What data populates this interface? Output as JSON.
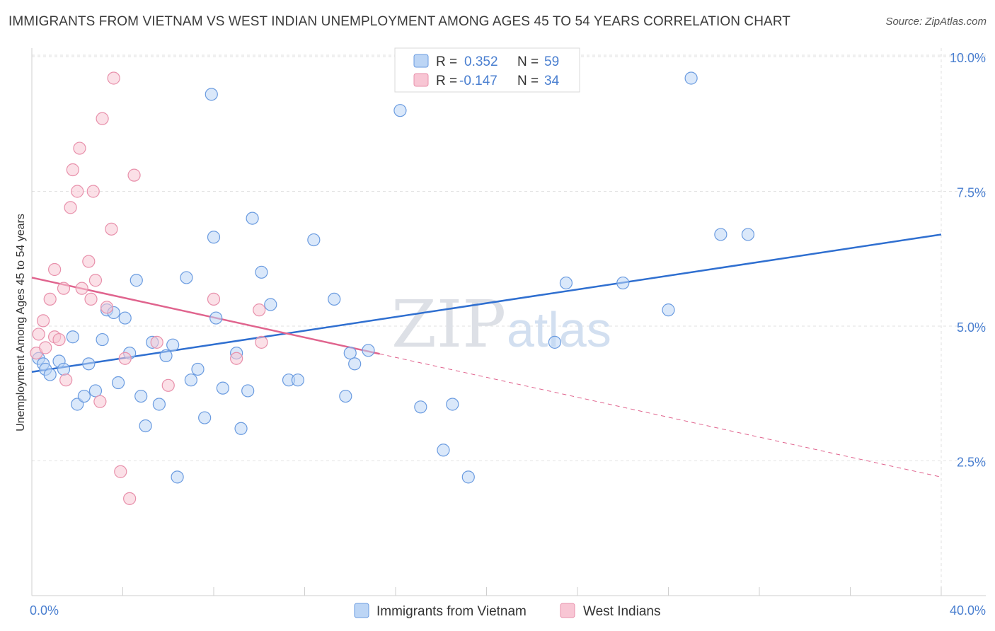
{
  "chart_data": {
    "type": "scatter",
    "title": "IMMIGRANTS FROM VIETNAM VS WEST INDIAN UNEMPLOYMENT AMONG AGES 45 TO 54 YEARS CORRELATION CHART",
    "source": "Source: ZipAtlas.com",
    "ylabel": "Unemployment Among Ages 45 to 54 years",
    "xlabel": "",
    "xlim": [
      0,
      40
    ],
    "ylim": [
      0,
      10.2
    ],
    "x_tick_labels": [
      "0.0%",
      "40.0%"
    ],
    "y_ticks": [
      {
        "value": 2.5,
        "label": "2.5%"
      },
      {
        "value": 5.0,
        "label": "5.0%"
      },
      {
        "value": 7.5,
        "label": "7.5%"
      },
      {
        "value": 10.0,
        "label": "10.0%"
      }
    ],
    "watermark": {
      "zip": "ZIP",
      "atlas": "atlas"
    },
    "legend": {
      "r_label": "R =",
      "n_label": "N =",
      "entries": [
        {
          "r": "0.352",
          "n": "59"
        },
        {
          "r": "-0.147",
          "n": "34"
        }
      ]
    },
    "series": [
      {
        "name": "Immigrants from Vietnam",
        "color": "#6a9be0",
        "fill": "#bcd5f5",
        "trend": {
          "x0": 0,
          "y0": 4.15,
          "x1": 40,
          "y1": 6.7,
          "dashed_from": null
        },
        "points": [
          [
            0.3,
            4.4
          ],
          [
            0.5,
            4.3
          ],
          [
            0.6,
            4.2
          ],
          [
            0.8,
            4.1
          ],
          [
            1.2,
            4.35
          ],
          [
            1.4,
            4.2
          ],
          [
            1.8,
            4.8
          ],
          [
            2.0,
            3.55
          ],
          [
            2.3,
            3.7
          ],
          [
            2.5,
            4.3
          ],
          [
            2.8,
            3.8
          ],
          [
            3.1,
            4.75
          ],
          [
            3.3,
            5.3
          ],
          [
            3.6,
            5.25
          ],
          [
            3.8,
            3.95
          ],
          [
            4.1,
            5.15
          ],
          [
            4.3,
            4.5
          ],
          [
            4.6,
            5.85
          ],
          [
            4.8,
            3.7
          ],
          [
            5.0,
            3.15
          ],
          [
            5.3,
            4.7
          ],
          [
            5.6,
            3.55
          ],
          [
            5.9,
            4.45
          ],
          [
            6.2,
            4.65
          ],
          [
            6.4,
            2.2
          ],
          [
            6.8,
            5.9
          ],
          [
            7.0,
            4.0
          ],
          [
            7.3,
            4.2
          ],
          [
            7.6,
            3.3
          ],
          [
            7.9,
            9.3
          ],
          [
            8.0,
            6.65
          ],
          [
            8.1,
            5.15
          ],
          [
            8.4,
            3.85
          ],
          [
            9.0,
            4.5
          ],
          [
            9.2,
            3.1
          ],
          [
            9.5,
            3.8
          ],
          [
            9.7,
            7.0
          ],
          [
            10.1,
            6.0
          ],
          [
            10.5,
            5.4
          ],
          [
            11.3,
            4.0
          ],
          [
            11.7,
            4.0
          ],
          [
            12.4,
            6.6
          ],
          [
            13.3,
            5.5
          ],
          [
            13.8,
            3.7
          ],
          [
            14.0,
            4.5
          ],
          [
            14.2,
            4.3
          ],
          [
            14.8,
            4.55
          ],
          [
            16.2,
            9.0
          ],
          [
            17.1,
            3.5
          ],
          [
            18.1,
            2.7
          ],
          [
            18.5,
            3.55
          ],
          [
            19.2,
            2.2
          ],
          [
            23.0,
            4.7
          ],
          [
            23.5,
            5.8
          ],
          [
            26.0,
            5.8
          ],
          [
            28.0,
            5.3
          ],
          [
            29.0,
            9.6
          ],
          [
            30.3,
            6.7
          ],
          [
            31.5,
            6.7
          ]
        ]
      },
      {
        "name": "West Indians",
        "color": "#e890ab",
        "fill": "#f8c6d4",
        "trend": {
          "x0": 0,
          "y0": 5.9,
          "x1": 40,
          "y1": 2.2,
          "dashed_from": 15.3
        },
        "points": [
          [
            0.2,
            4.5
          ],
          [
            0.3,
            4.85
          ],
          [
            0.5,
            5.1
          ],
          [
            0.6,
            4.6
          ],
          [
            0.8,
            5.5
          ],
          [
            1.0,
            4.8
          ],
          [
            1.0,
            6.05
          ],
          [
            1.2,
            4.75
          ],
          [
            1.4,
            5.7
          ],
          [
            1.5,
            4.0
          ],
          [
            1.7,
            7.2
          ],
          [
            1.8,
            7.9
          ],
          [
            2.0,
            7.5
          ],
          [
            2.1,
            8.3
          ],
          [
            2.2,
            5.7
          ],
          [
            2.5,
            6.2
          ],
          [
            2.6,
            5.5
          ],
          [
            2.7,
            7.5
          ],
          [
            2.8,
            5.85
          ],
          [
            3.0,
            3.6
          ],
          [
            3.1,
            8.85
          ],
          [
            3.3,
            5.35
          ],
          [
            3.5,
            6.8
          ],
          [
            3.6,
            9.6
          ],
          [
            3.9,
            2.3
          ],
          [
            4.1,
            4.4
          ],
          [
            4.3,
            1.8
          ],
          [
            4.5,
            7.8
          ],
          [
            5.5,
            4.7
          ],
          [
            6.0,
            3.9
          ],
          [
            8.0,
            5.5
          ],
          [
            9.0,
            4.4
          ],
          [
            10.0,
            5.3
          ],
          [
            10.1,
            4.7
          ]
        ]
      }
    ]
  }
}
